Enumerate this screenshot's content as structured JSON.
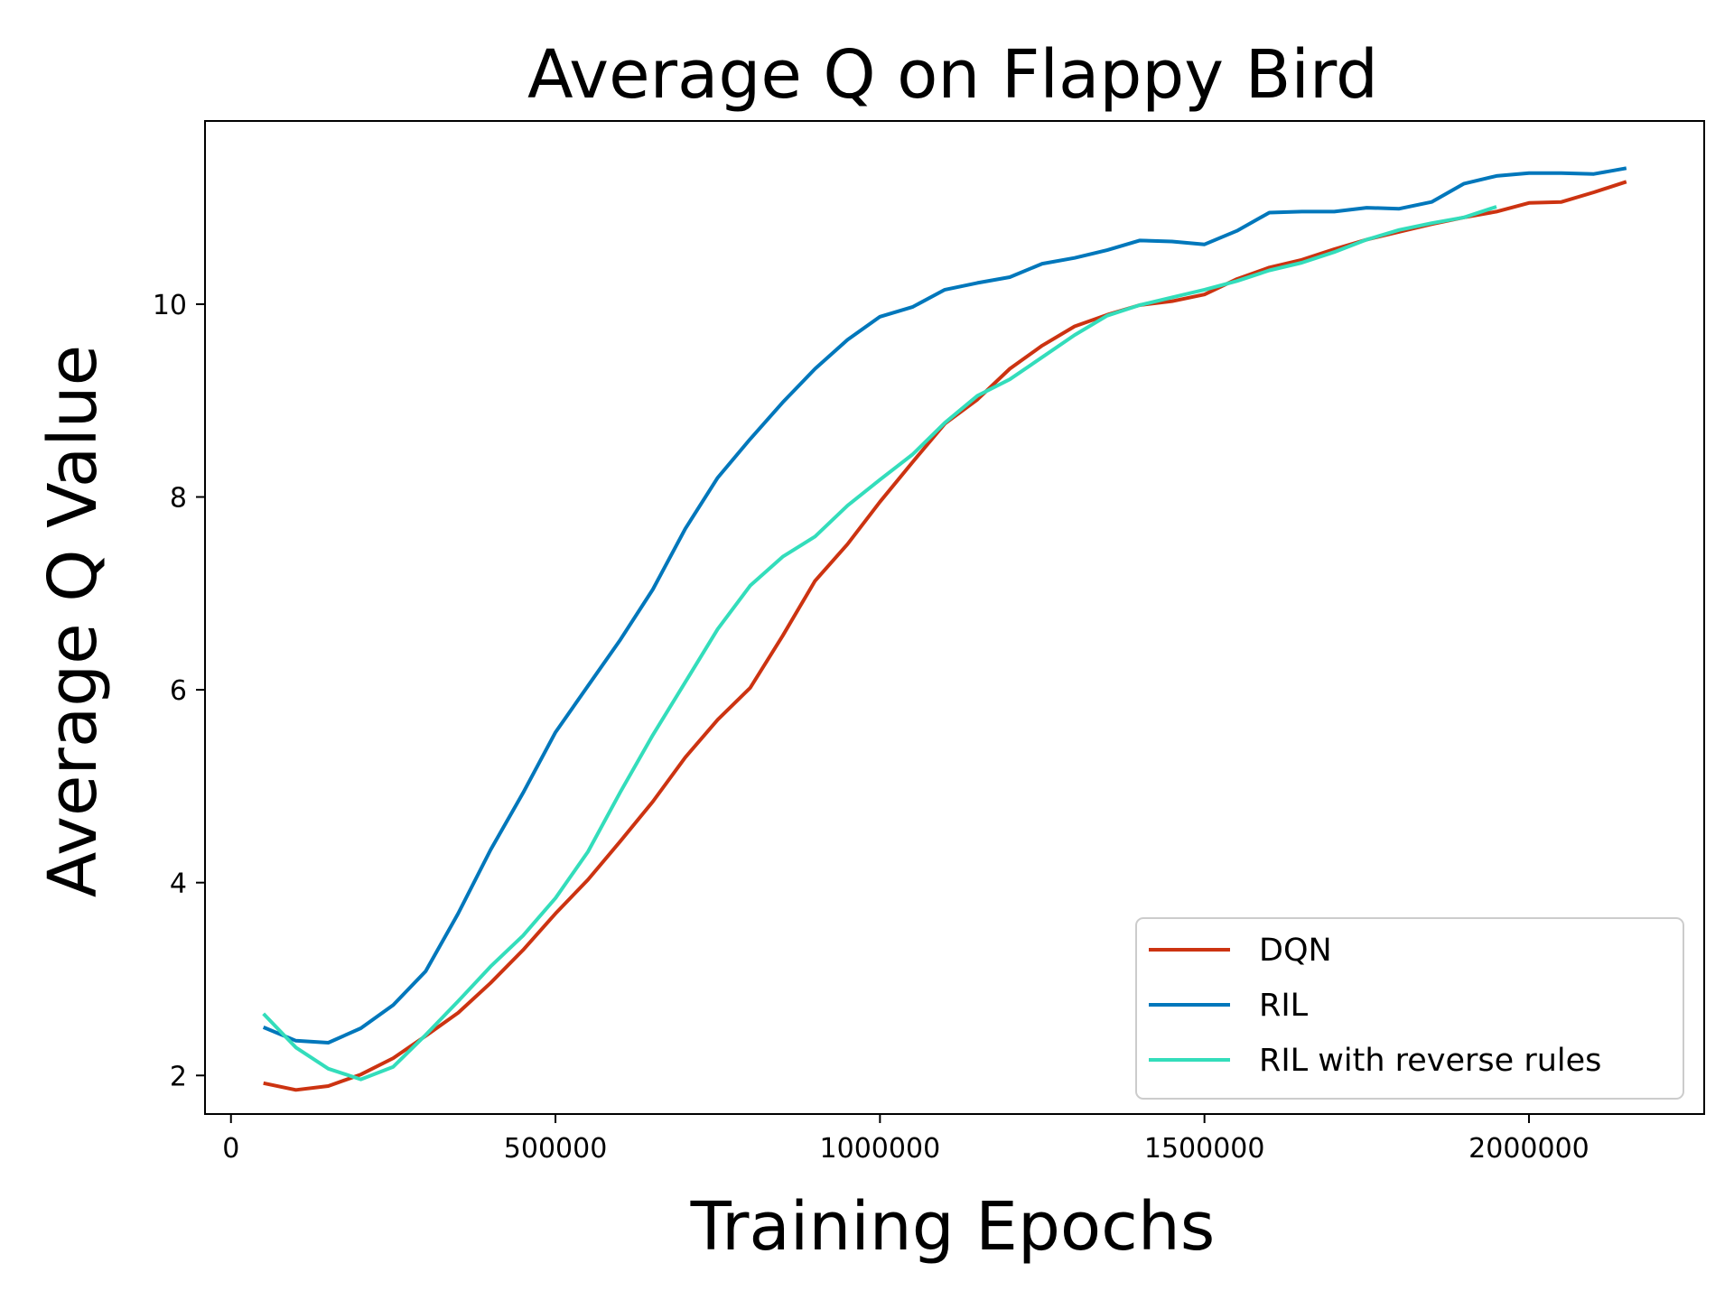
{
  "chart_data": {
    "type": "line",
    "title": "Average Q on Flappy Bird",
    "xlabel": "Training Epochs",
    "ylabel": "Average Q Value",
    "xlim": [
      -40000,
      2270000
    ],
    "ylim": [
      1.6,
      11.9
    ],
    "xticks": [
      0,
      500000,
      1000000,
      1500000,
      2000000
    ],
    "yticks": [
      2,
      4,
      6,
      8,
      10
    ],
    "grid": false,
    "legend": "bottom-right",
    "series": [
      {
        "name": "DQN",
        "color": "#CC3311",
        "x": [
          50000,
          100000,
          150000,
          200000,
          250000,
          300000,
          350000,
          400000,
          450000,
          500000,
          550000,
          600000,
          650000,
          700000,
          750000,
          800000,
          850000,
          900000,
          950000,
          1000000,
          1050000,
          1100000,
          1150000,
          1200000,
          1250000,
          1300000,
          1350000,
          1400000,
          1450000,
          1500000,
          1550000,
          1600000,
          1650000,
          1700000,
          1750000,
          1800000,
          1850000,
          1900000,
          1950000,
          2000000,
          2050000,
          2100000,
          2150000
        ],
        "values": [
          1.92,
          1.85,
          1.89,
          2.01,
          2.18,
          2.41,
          2.65,
          2.96,
          3.3,
          3.68,
          4.03,
          4.43,
          4.84,
          5.3,
          5.69,
          6.02,
          6.56,
          7.13,
          7.51,
          7.95,
          8.36,
          8.76,
          9.01,
          9.33,
          9.57,
          9.77,
          9.89,
          9.99,
          10.03,
          10.1,
          10.26,
          10.38,
          10.46,
          10.57,
          10.67,
          10.75,
          10.83,
          10.9,
          10.96,
          11.05,
          11.06,
          11.16,
          11.27
        ]
      },
      {
        "name": "RIL",
        "color": "#0077BB",
        "x": [
          50000,
          100000,
          150000,
          200000,
          250000,
          300000,
          350000,
          400000,
          450000,
          500000,
          550000,
          600000,
          650000,
          700000,
          750000,
          800000,
          850000,
          900000,
          950000,
          1000000,
          1050000,
          1100000,
          1150000,
          1200000,
          1250000,
          1300000,
          1350000,
          1400000,
          1450000,
          1500000,
          1550000,
          1600000,
          1650000,
          1700000,
          1750000,
          1800000,
          1850000,
          1900000,
          1950000,
          2000000,
          2050000,
          2100000,
          2150000
        ],
        "values": [
          2.5,
          2.36,
          2.34,
          2.49,
          2.73,
          3.08,
          3.68,
          4.34,
          4.93,
          5.56,
          6.04,
          6.52,
          7.04,
          7.67,
          8.2,
          8.6,
          8.98,
          9.33,
          9.63,
          9.87,
          9.97,
          10.15,
          10.22,
          10.28,
          10.42,
          10.48,
          10.56,
          10.66,
          10.65,
          10.62,
          10.76,
          10.95,
          10.96,
          10.96,
          11.0,
          10.99,
          11.06,
          11.25,
          11.33,
          11.36,
          11.36,
          11.35,
          11.41
        ]
      },
      {
        "name": "RIL with reverse rules",
        "color": "#33DDBB",
        "x": [
          50000,
          100000,
          150000,
          200000,
          250000,
          300000,
          350000,
          400000,
          450000,
          500000,
          550000,
          600000,
          650000,
          700000,
          750000,
          800000,
          850000,
          900000,
          950000,
          1000000,
          1050000,
          1100000,
          1150000,
          1200000,
          1250000,
          1300000,
          1350000,
          1400000,
          1450000,
          1500000,
          1550000,
          1600000,
          1650000,
          1700000,
          1750000,
          1800000,
          1850000,
          1900000,
          1950000
        ],
        "values": [
          2.64,
          2.29,
          2.07,
          1.96,
          2.09,
          2.42,
          2.77,
          3.13,
          3.45,
          3.84,
          4.32,
          4.94,
          5.53,
          6.08,
          6.63,
          7.08,
          7.38,
          7.59,
          7.91,
          8.18,
          8.44,
          8.77,
          9.05,
          9.22,
          9.45,
          9.68,
          9.88,
          9.99,
          10.07,
          10.15,
          10.24,
          10.35,
          10.43,
          10.54,
          10.67,
          10.77,
          10.84,
          10.9,
          11.01
        ]
      }
    ]
  }
}
